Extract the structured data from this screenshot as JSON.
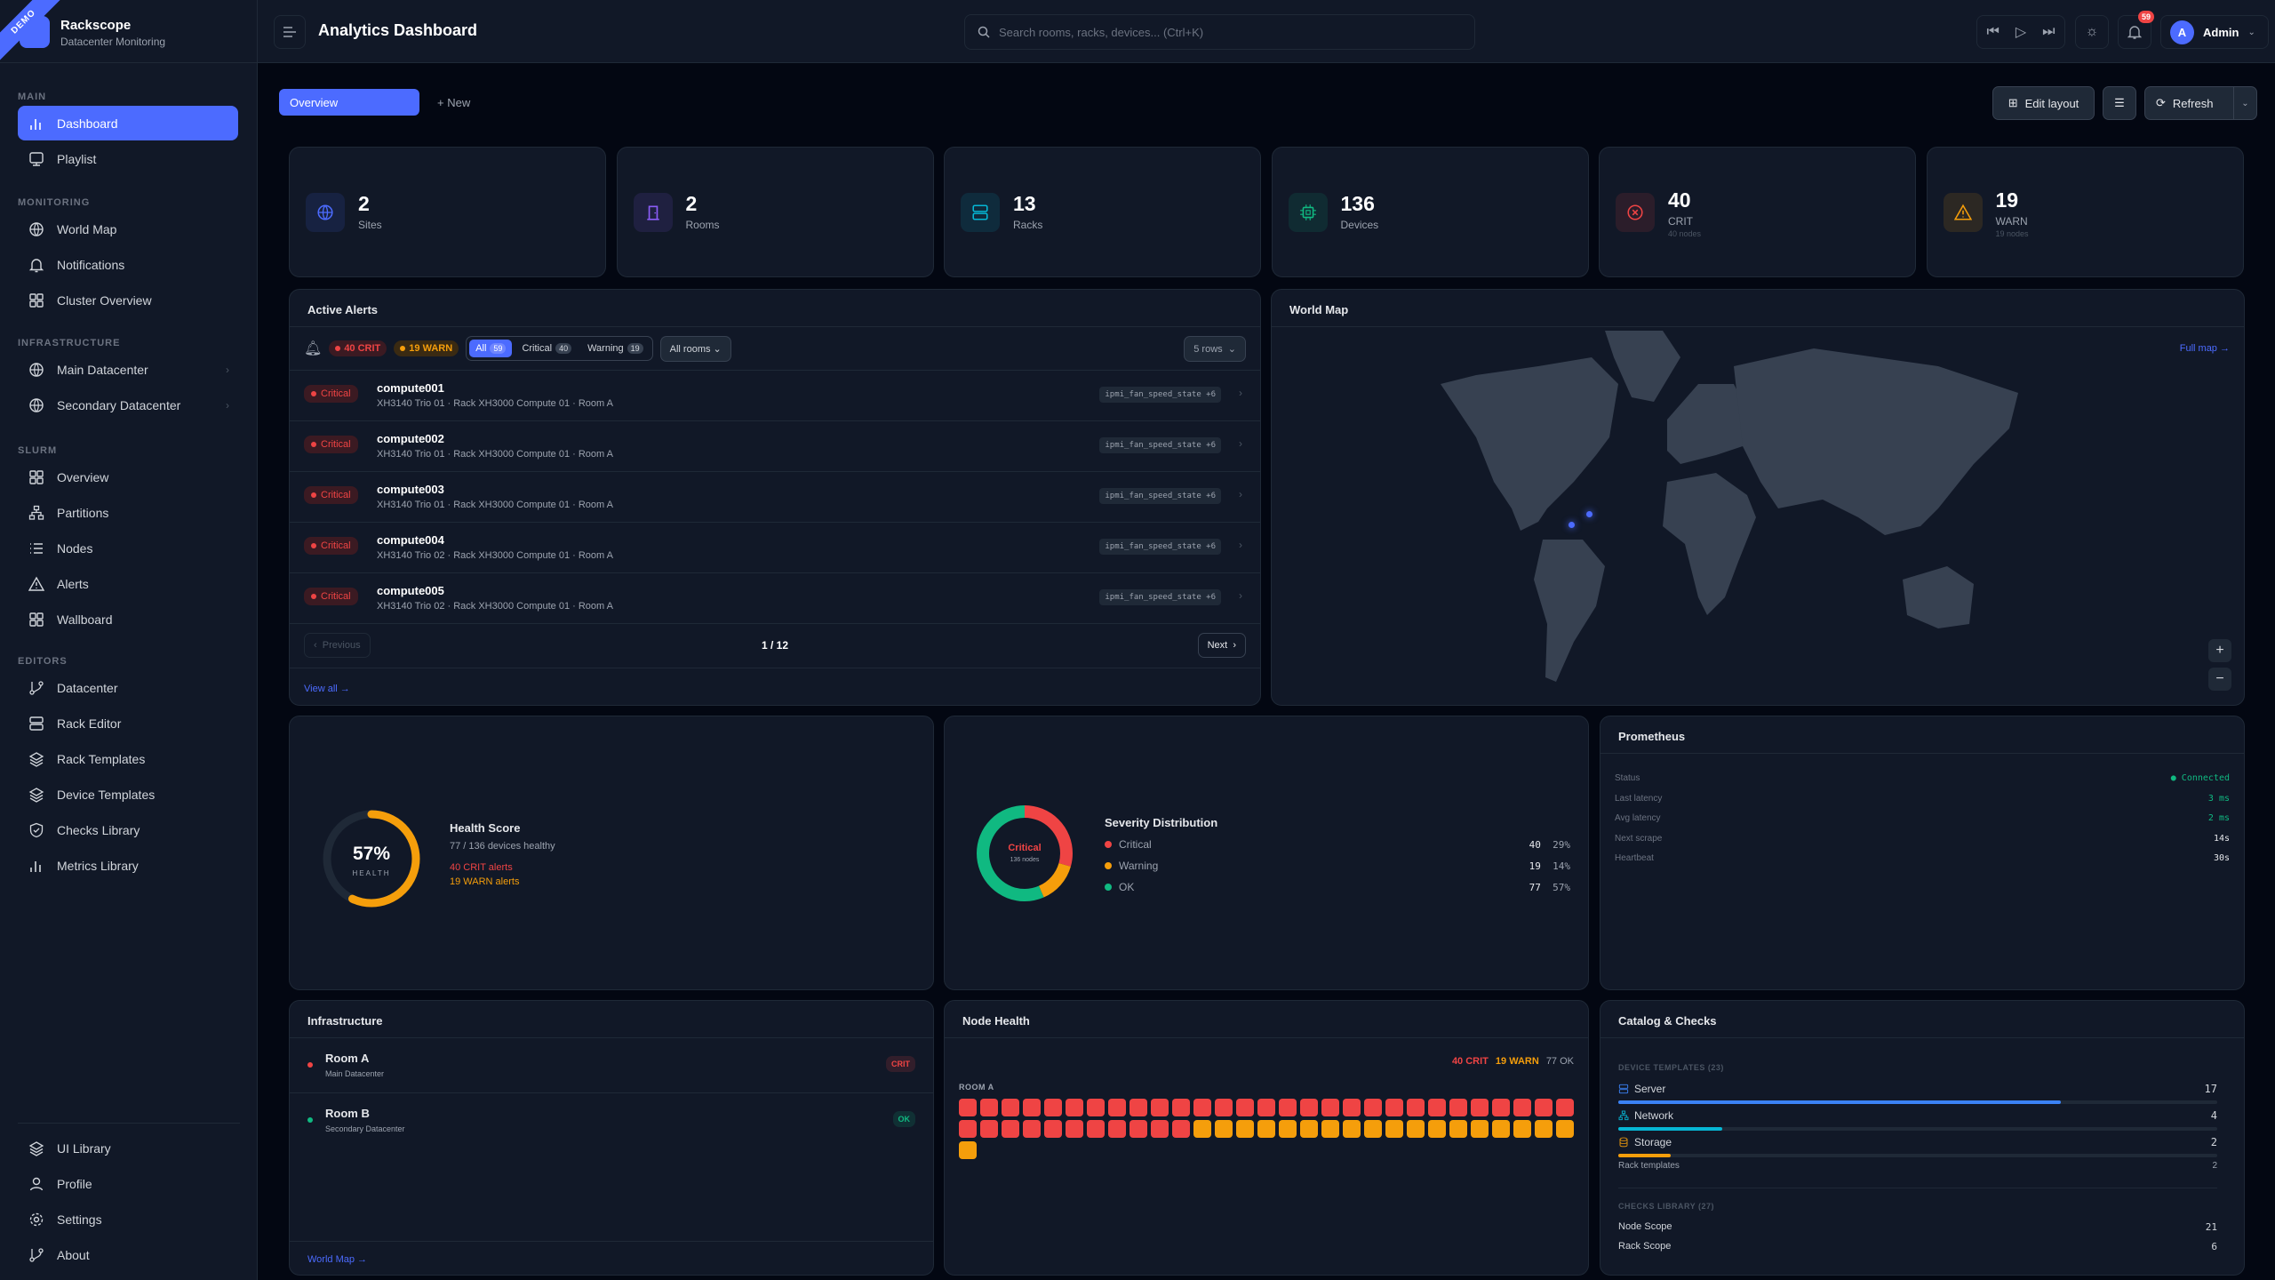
{
  "brand": {
    "name": "Rackscope",
    "subtitle": "Datacenter Monitoring",
    "ribbon": "DEMO"
  },
  "sidebar": {
    "sections": [
      {
        "label": "MAIN",
        "items": [
          {
            "label": "Dashboard",
            "icon": "bar-chart-icon",
            "active": true
          },
          {
            "label": "Playlist",
            "icon": "monitor-play-icon"
          }
        ]
      },
      {
        "label": "MONITORING",
        "items": [
          {
            "label": "World Map",
            "icon": "globe-icon"
          },
          {
            "label": "Notifications",
            "icon": "bell-icon"
          },
          {
            "label": "Cluster Overview",
            "icon": "grid-icon"
          }
        ]
      },
      {
        "label": "INFRASTRUCTURE",
        "items": [
          {
            "label": "Main Datacenter",
            "icon": "globe-icon",
            "chevron": true
          },
          {
            "label": "Secondary Datacenter",
            "icon": "globe-icon",
            "chevron": true
          }
        ]
      },
      {
        "label": "SLURM",
        "items": [
          {
            "label": "Overview",
            "icon": "grid-icon"
          },
          {
            "label": "Partitions",
            "icon": "network-icon"
          },
          {
            "label": "Nodes",
            "icon": "list-icon"
          },
          {
            "label": "Alerts",
            "icon": "warning-icon"
          },
          {
            "label": "Wallboard",
            "icon": "grid-icon"
          }
        ]
      },
      {
        "label": "EDITORS",
        "items": [
          {
            "label": "Datacenter",
            "icon": "git-branch-icon"
          },
          {
            "label": "Rack Editor",
            "icon": "server-icon"
          },
          {
            "label": "Rack Templates",
            "icon": "layers-icon"
          },
          {
            "label": "Device Templates",
            "icon": "layers-icon"
          },
          {
            "label": "Checks Library",
            "icon": "shield-check-icon"
          },
          {
            "label": "Metrics Library",
            "icon": "bar-chart-icon"
          }
        ]
      }
    ],
    "bottom": [
      {
        "label": "UI Library",
        "icon": "layers-icon"
      },
      {
        "label": "Profile",
        "icon": "user-icon"
      },
      {
        "label": "Settings",
        "icon": "gear-icon"
      },
      {
        "label": "About",
        "icon": "git-branch-icon"
      }
    ]
  },
  "header": {
    "title": "Analytics Dashboard",
    "search_placeholder": "Search rooms, racks, devices... (Ctrl+K)",
    "notifications_count": "59",
    "user": "Admin",
    "avatar_initial": "A"
  },
  "toolbar": {
    "tab_active": "Overview",
    "new_tab": "+ New",
    "edit_layout": "Edit layout",
    "refresh": "Refresh"
  },
  "stats": [
    {
      "value": "2",
      "label": "Sites",
      "icon": "globe-icon",
      "color": "#4c6bff"
    },
    {
      "value": "2",
      "label": "Rooms",
      "icon": "door-icon",
      "color": "#8b5cf6"
    },
    {
      "value": "13",
      "label": "Racks",
      "icon": "server-icon",
      "color": "#06b6d4"
    },
    {
      "value": "136",
      "label": "Devices",
      "icon": "chip-icon",
      "color": "#10b981"
    },
    {
      "value": "40",
      "label": "CRIT",
      "sub": "40 nodes",
      "icon": "x-circle-icon",
      "color": "#ef4444"
    },
    {
      "value": "19",
      "label": "WARN",
      "sub": "19 nodes",
      "icon": "warning-icon",
      "color": "#f59e0b"
    }
  ],
  "alerts": {
    "title": "Active Alerts",
    "crit_pill": "40 CRIT",
    "warn_pill": "19 WARN",
    "filters": [
      {
        "label": "All",
        "count": "59",
        "active": true
      },
      {
        "label": "Critical",
        "count": "40"
      },
      {
        "label": "Warning",
        "count": "19"
      }
    ],
    "room_select": "All rooms",
    "rows_select": "5 rows",
    "rows": [
      {
        "severity": "Critical",
        "host": "compute001",
        "location": "XH3140 Trio 01 · Rack XH3000 Compute 01 · Room A",
        "metric": "ipmi_fan_speed_state +6"
      },
      {
        "severity": "Critical",
        "host": "compute002",
        "location": "XH3140 Trio 01 · Rack XH3000 Compute 01 · Room A",
        "metric": "ipmi_fan_speed_state +6"
      },
      {
        "severity": "Critical",
        "host": "compute003",
        "location": "XH3140 Trio 01 · Rack XH3000 Compute 01 · Room A",
        "metric": "ipmi_fan_speed_state +6"
      },
      {
        "severity": "Critical",
        "host": "compute004",
        "location": "XH3140 Trio 02 · Rack XH3000 Compute 01 · Room A",
        "metric": "ipmi_fan_speed_state +6"
      },
      {
        "severity": "Critical",
        "host": "compute005",
        "location": "XH3140 Trio 02 · Rack XH3000 Compute 01 · Room A",
        "metric": "ipmi_fan_speed_state +6"
      }
    ],
    "prev": "Previous",
    "next": "Next",
    "page": "1 / 12",
    "view_all": "View all →"
  },
  "world_map": {
    "title": "World Map",
    "full_map": "Full map →",
    "zoom_in": "+",
    "zoom_out": "−",
    "marker_count": 2
  },
  "health": {
    "percent": 57,
    "percent_label": "57%",
    "caption": "HEALTH",
    "title": "Health Score",
    "healthy": "77 / 136 devices healthy",
    "crit": "40 CRIT alerts",
    "warn": "19 WARN alerts"
  },
  "severity": {
    "title": "Severity Distribution",
    "center_label": "Critical",
    "center_sub": "136 nodes",
    "items": [
      {
        "label": "Critical",
        "count": "40",
        "pct": "29%",
        "value": 40,
        "color": "#ef4444"
      },
      {
        "label": "Warning",
        "count": "19",
        "pct": "14%",
        "value": 19,
        "color": "#f59e0b"
      },
      {
        "label": "OK",
        "count": "77",
        "pct": "57%",
        "value": 77,
        "color": "#10b981"
      }
    ]
  },
  "prometheus": {
    "title": "Prometheus",
    "rows": [
      {
        "label": "Status",
        "value": "● Connected",
        "color": "#10b981"
      },
      {
        "label": "Last latency",
        "value": "3 ms",
        "color": "#10b981"
      },
      {
        "label": "Avg latency",
        "value": "2 ms",
        "color": "#10b981"
      },
      {
        "label": "Next scrape",
        "value": "14s",
        "color": "#e5e7eb"
      },
      {
        "label": "Heartbeat",
        "value": "30s",
        "color": "#e5e7eb"
      }
    ]
  },
  "infrastructure": {
    "title": "Infrastructure",
    "rooms": [
      {
        "name": "Room A",
        "site": "Main Datacenter",
        "status": "CRIT",
        "color": "#ef4444"
      },
      {
        "name": "Room B",
        "site": "Secondary Datacenter",
        "status": "OK",
        "color": "#10b981"
      }
    ],
    "link": "World Map →"
  },
  "node_health": {
    "title": "Node Health",
    "crit": "40 CRIT",
    "warn": "19 WARN",
    "ok": "77 OK",
    "room": "ROOM A",
    "crit_nodes": 40,
    "warn_nodes": 19
  },
  "catalog": {
    "title": "Catalog & Checks",
    "templates_label": "DEVICE TEMPLATES (23)",
    "templates": [
      {
        "label": "Server",
        "count": "17",
        "value": 17,
        "color": "#3b82f6",
        "icon": "server-icon"
      },
      {
        "label": "Network",
        "count": "4",
        "value": 4,
        "color": "#06b6d4",
        "icon": "network-icon"
      },
      {
        "label": "Storage",
        "count": "2",
        "value": 2,
        "color": "#f59e0b",
        "icon": "database-icon"
      }
    ],
    "rack_templates": {
      "label": "Rack templates",
      "count": "2"
    },
    "checks_label": "CHECKS LIBRARY (27)",
    "checks": [
      {
        "label": "Node Scope",
        "count": "21"
      },
      {
        "label": "Rack Scope",
        "count": "6"
      }
    ]
  }
}
